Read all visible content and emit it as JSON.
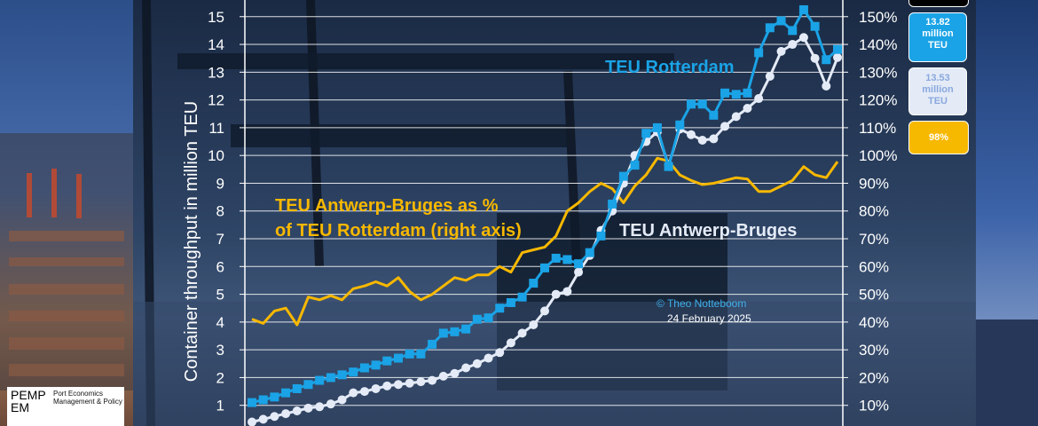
{
  "chart_data": {
    "type": "line",
    "ylabel": "Container throughput in million TEU",
    "y_ticks": [
      "1",
      "2",
      "3",
      "4",
      "5",
      "6",
      "7",
      "8",
      "9",
      "10",
      "11",
      "12",
      "13",
      "14",
      "15"
    ],
    "y2_ticks": [
      "10%",
      "20%",
      "30%",
      "40%",
      "50%",
      "60%",
      "70%",
      "80%",
      "90%",
      "100%",
      "110%",
      "120%",
      "130%",
      "140%",
      "150%"
    ],
    "ylim": [
      0,
      15.6
    ],
    "y2lim": [
      0,
      156
    ],
    "grid": true,
    "series": [
      {
        "name": "TEU Rotterdam",
        "axis": "left",
        "color": "#1aa3e6",
        "values": [
          1.1,
          1.2,
          1.3,
          1.45,
          1.6,
          1.75,
          1.9,
          2.0,
          2.1,
          2.2,
          2.35,
          2.45,
          2.6,
          2.7,
          2.85,
          2.85,
          3.2,
          3.6,
          3.65,
          3.75,
          4.1,
          4.15,
          4.5,
          4.7,
          4.9,
          5.4,
          5.95,
          6.3,
          6.25,
          6.1,
          6.5,
          7.1,
          8.25,
          9.25,
          9.65,
          10.8,
          11.0,
          9.6,
          11.1,
          11.85,
          11.85,
          11.45,
          12.25,
          12.2,
          12.25,
          13.7,
          14.6,
          14.85,
          14.5,
          15.25,
          14.65,
          13.45,
          13.82
        ]
      },
      {
        "name": "TEU Antwerp-Bruges",
        "axis": "left",
        "color": "#e4ebf7",
        "values": [
          0.4,
          0.5,
          0.6,
          0.7,
          0.8,
          0.9,
          0.95,
          1.05,
          1.2,
          1.45,
          1.5,
          1.6,
          1.7,
          1.75,
          1.8,
          1.85,
          1.9,
          2.05,
          2.15,
          2.35,
          2.5,
          2.7,
          2.9,
          3.25,
          3.6,
          3.9,
          4.4,
          5.0,
          5.1,
          5.8,
          6.4,
          7.3,
          8.0,
          9.0,
          10.0,
          10.5,
          10.85,
          9.65,
          10.95,
          10.75,
          10.55,
          10.6,
          11.05,
          11.4,
          11.7,
          12.05,
          12.85,
          13.75,
          14.0,
          14.25,
          13.5,
          12.5,
          13.53
        ]
      },
      {
        "name": "TEU Antwerp-Bruges as % of TEU Rotterdam (right axis)",
        "axis": "right",
        "color": "#f7b800",
        "values": [
          41,
          39.5,
          44,
          45,
          39,
          49,
          48,
          49.5,
          48,
          52,
          53,
          54.5,
          53,
          56,
          51,
          48,
          50,
          53,
          56,
          55,
          57,
          57,
          60,
          58,
          65,
          66,
          67,
          71,
          80,
          83,
          87,
          90,
          88,
          83,
          89,
          93,
          99,
          98,
          93,
          91,
          89.5,
          90,
          91,
          92,
          91.5,
          87,
          87,
          89,
          91,
          96,
          93,
          92,
          97.8
        ]
      }
    ],
    "annotations": {
      "label_rotterdam": "TEU Rotterdam",
      "label_antwerp": "TEU Antwerp-Bruges",
      "label_pct_line1": "TEU Antwerp-Bruges as %",
      "label_pct_line2": "of TEU Rotterdam (right axis)",
      "credit": "© Theo Notteboom",
      "date": "24 February 2025"
    },
    "badges": {
      "rotterdam": [
        "13.82",
        "million",
        "TEU"
      ],
      "antwerp": [
        "13.53",
        "million",
        "TEU"
      ],
      "pct": "98%"
    }
  },
  "logo": {
    "mark_top": "PEMP",
    "mark_bottom": "EM",
    "tagline_1": "Port Economics",
    "tagline_2": "Management & Policy"
  }
}
